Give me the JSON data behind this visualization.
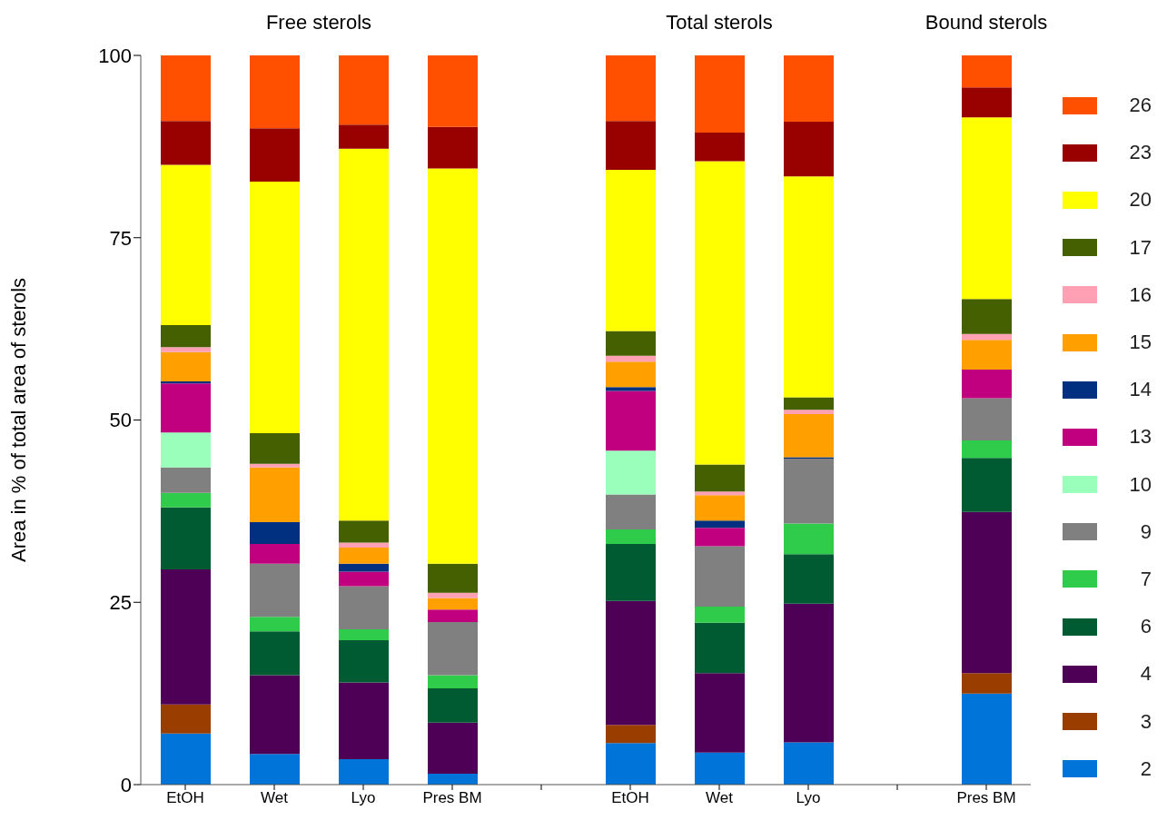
{
  "chart_data": {
    "type": "bar",
    "stacked": true,
    "ylabel": "Area in % of total area of sterols",
    "ylim": [
      0,
      100
    ],
    "yticks": [
      0,
      25,
      50,
      75,
      100
    ],
    "legend": "right",
    "annotations": [
      "Free sterols",
      "Total sterols",
      "Bound sterols"
    ],
    "categories": [
      "EtOH",
      "Wet",
      "Lyo",
      "Pres BM",
      null,
      "EtOH",
      "Wet",
      "Lyo",
      null,
      "Pres BM"
    ],
    "series": [
      {
        "name": "2",
        "color": "#0074d9",
        "values": [
          7,
          4.2,
          3.5,
          1.5,
          null,
          5.7,
          4.4,
          5.8,
          null,
          12.5
        ]
      },
      {
        "name": "3",
        "color": "#993d00",
        "values": [
          4,
          0,
          0,
          0,
          null,
          2.5,
          0,
          0,
          null,
          2.8
        ]
      },
      {
        "name": "4",
        "color": "#4d0055",
        "values": [
          18.5,
          10.8,
          10.5,
          7,
          null,
          17,
          10.9,
          19,
          null,
          22.1
        ]
      },
      {
        "name": "6",
        "color": "#005a32",
        "values": [
          8.5,
          6,
          5.8,
          4.7,
          null,
          7.8,
          6.9,
          6.8,
          null,
          7.4
        ]
      },
      {
        "name": "7",
        "color": "#2ecc4a",
        "values": [
          2,
          2,
          1.5,
          1.8,
          null,
          2,
          2.2,
          4.2,
          null,
          2.4
        ]
      },
      {
        "name": "9",
        "color": "#808080",
        "values": [
          3.5,
          7.3,
          5.9,
          7.3,
          null,
          4.8,
          8.3,
          8.9,
          null,
          5.8
        ]
      },
      {
        "name": "10",
        "color": "#99ffbb",
        "values": [
          4.8,
          0,
          0,
          0,
          null,
          6,
          0,
          0,
          null,
          0
        ]
      },
      {
        "name": "13",
        "color": "#c0007f",
        "values": [
          6.7,
          2.7,
          2,
          1.7,
          null,
          8.2,
          2.5,
          0,
          null,
          3.9
        ]
      },
      {
        "name": "14",
        "color": "#00307f",
        "values": [
          0.3,
          3,
          1.1,
          0,
          null,
          0.5,
          1,
          0.2,
          null,
          0
        ]
      },
      {
        "name": "15",
        "color": "#ffa000",
        "values": [
          4,
          7.5,
          2.2,
          1.6,
          null,
          3.5,
          3.5,
          5.9,
          null,
          4.1
        ]
      },
      {
        "name": "16",
        "color": "#ffa0b4",
        "values": [
          0.7,
          0.5,
          0.7,
          0.7,
          null,
          0.8,
          0.5,
          0.6,
          null,
          0.8
        ]
      },
      {
        "name": "17",
        "color": "#446000",
        "values": [
          3,
          4.2,
          3,
          4,
          null,
          3.4,
          3.7,
          1.7,
          null,
          4.8
        ]
      },
      {
        "name": "20",
        "color": "#ffff00",
        "values": [
          22,
          34.5,
          51,
          54.2,
          null,
          22.1,
          41.6,
          30.3,
          null,
          24.9
        ]
      },
      {
        "name": "23",
        "color": "#990000",
        "values": [
          6,
          7.3,
          3.3,
          5.7,
          null,
          6.7,
          3.9,
          7.5,
          null,
          4.1
        ]
      },
      {
        "name": "26",
        "color": "#ff5000",
        "values": [
          9,
          10,
          9.5,
          9.8,
          null,
          9,
          10.6,
          9.1,
          null,
          4.4
        ]
      }
    ]
  }
}
